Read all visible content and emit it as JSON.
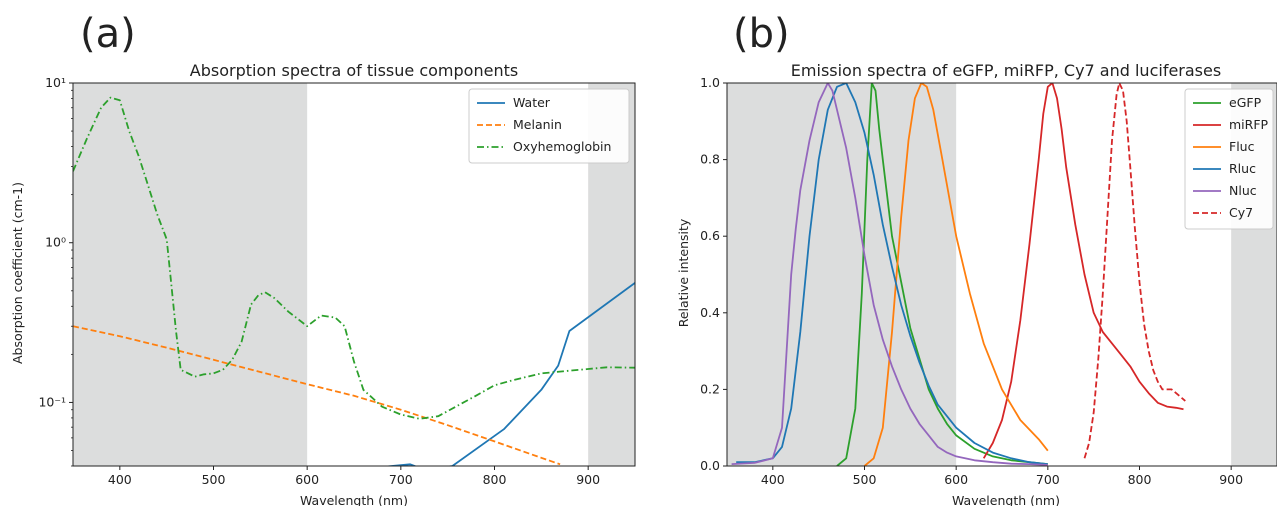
{
  "panels": [
    {
      "panel_label": "(a)",
      "title": "Absorption spectra of tissue components",
      "xlabel": "Wavelength (nm)",
      "ylabel": "Absorption coefficient (cm-1)",
      "xticks": [
        "400",
        "500",
        "600",
        "700",
        "800",
        "900"
      ],
      "yticks": [
        "10⁻¹",
        "10⁰",
        "10¹"
      ],
      "legend": [
        "Water",
        "Melanin",
        "Oxyhemoglobin"
      ]
    },
    {
      "panel_label": "(b)",
      "title": "Emission spectra of eGFP, miRFP, Cy7 and luciferases",
      "xlabel": "Wavelength (nm)",
      "ylabel": "Relative intensity",
      "xticks": [
        "400",
        "500",
        "600",
        "700",
        "800",
        "900"
      ],
      "yticks": [
        "0.0",
        "0.2",
        "0.4",
        "0.6",
        "0.8",
        "1.0"
      ],
      "legend": [
        "eGFP",
        "miRFP",
        "Fluc",
        "Rluc",
        "Nluc",
        "Cy7"
      ]
    }
  ],
  "chart_data": [
    {
      "type": "line",
      "title": "Absorption spectra of tissue components",
      "xlabel": "Wavelength (nm)",
      "ylabel": "Absorption coefficient (cm-1)",
      "xlim": [
        350,
        950
      ],
      "ylim": [
        0.04,
        10
      ],
      "yscale": "log",
      "grid": false,
      "legend_position": "top-right",
      "shaded_x_ranges": [
        [
          350,
          600
        ],
        [
          900,
          950
        ]
      ],
      "shade_color": "#dcdddd",
      "series": [
        {
          "name": "Water",
          "color": "#1f77b4",
          "dash": "solid",
          "x": [
            650,
            710,
            725,
            755,
            810,
            850,
            868,
            880,
            950
          ],
          "y": [
            0.038,
            0.041,
            0.038,
            0.04,
            0.068,
            0.12,
            0.17,
            0.28,
            0.56
          ]
        },
        {
          "name": "Melanin",
          "color": "#ff7f0e",
          "dash": "dashed",
          "x": [
            350,
            400,
            450,
            500,
            550,
            600,
            650,
            700,
            750,
            800,
            850,
            870
          ],
          "y": [
            0.3,
            0.26,
            0.22,
            0.185,
            0.155,
            0.13,
            0.11,
            0.09,
            0.072,
            0.057,
            0.045,
            0.041
          ]
        },
        {
          "name": "Oxyhemoglobin",
          "color": "#2ca02c",
          "dash": "dashdot",
          "x": [
            350,
            365,
            380,
            390,
            400,
            410,
            420,
            430,
            440,
            450,
            455,
            460,
            465,
            470,
            480,
            490,
            500,
            510,
            520,
            530,
            540,
            548,
            555,
            565,
            580,
            600,
            615,
            630,
            640,
            650,
            660,
            680,
            700,
            720,
            740,
            760,
            780,
            800,
            820,
            850,
            880,
            900,
            920,
            950
          ],
          "y": [
            2.8,
            4.5,
            7.0,
            8.1,
            7.8,
            5.0,
            3.5,
            2.3,
            1.5,
            1.05,
            0.55,
            0.28,
            0.16,
            0.155,
            0.145,
            0.15,
            0.152,
            0.16,
            0.185,
            0.24,
            0.41,
            0.47,
            0.49,
            0.45,
            0.37,
            0.3,
            0.35,
            0.34,
            0.3,
            0.18,
            0.12,
            0.094,
            0.084,
            0.079,
            0.082,
            0.095,
            0.11,
            0.128,
            0.138,
            0.152,
            0.158,
            0.162,
            0.166,
            0.165
          ]
        }
      ]
    },
    {
      "type": "line",
      "title": "Emission spectra of eGFP, miRFP, Cy7 and luciferases",
      "xlabel": "Wavelength (nm)",
      "ylabel": "Relative intensity",
      "xlim": [
        350,
        950
      ],
      "ylim": [
        0,
        1
      ],
      "grid": false,
      "legend_position": "top-right",
      "shaded_x_ranges": [
        [
          350,
          600
        ],
        [
          900,
          950
        ]
      ],
      "shade_color": "#dcdddd",
      "series": [
        {
          "name": "eGFP",
          "color": "#2ca02c",
          "dash": "solid",
          "x": [
            470,
            480,
            490,
            497,
            503,
            508,
            512,
            516,
            520,
            525,
            530,
            540,
            550,
            560,
            570,
            580,
            590,
            600,
            620,
            640,
            660,
            680,
            700
          ],
          "y": [
            0.0,
            0.02,
            0.15,
            0.45,
            0.8,
            1.0,
            0.98,
            0.88,
            0.8,
            0.7,
            0.6,
            0.48,
            0.36,
            0.28,
            0.2,
            0.15,
            0.11,
            0.08,
            0.045,
            0.025,
            0.015,
            0.01,
            0.005
          ]
        },
        {
          "name": "miRFP",
          "color": "#d62728",
          "dash": "solid",
          "x": [
            630,
            640,
            650,
            660,
            670,
            680,
            690,
            695,
            700,
            705,
            710,
            715,
            720,
            730,
            740,
            750,
            760,
            770,
            780,
            790,
            800,
            810,
            820,
            830,
            840,
            848
          ],
          "y": [
            0.02,
            0.06,
            0.12,
            0.22,
            0.38,
            0.58,
            0.8,
            0.92,
            0.99,
            1.0,
            0.96,
            0.88,
            0.78,
            0.63,
            0.5,
            0.4,
            0.35,
            0.32,
            0.29,
            0.26,
            0.22,
            0.19,
            0.165,
            0.155,
            0.152,
            0.148
          ]
        },
        {
          "name": "Fluc",
          "color": "#ff7f0e",
          "dash": "solid",
          "x": [
            500,
            510,
            520,
            530,
            540,
            548,
            555,
            562,
            568,
            575,
            585,
            600,
            615,
            630,
            650,
            670,
            690,
            700
          ],
          "y": [
            0.0,
            0.02,
            0.1,
            0.35,
            0.65,
            0.85,
            0.96,
            1.0,
            0.99,
            0.93,
            0.8,
            0.6,
            0.45,
            0.32,
            0.2,
            0.12,
            0.07,
            0.04
          ]
        },
        {
          "name": "Rluc",
          "color": "#1f77b4",
          "dash": "solid",
          "x": [
            360,
            380,
            400,
            410,
            420,
            430,
            440,
            450,
            460,
            470,
            480,
            490,
            500,
            510,
            520,
            530,
            540,
            550,
            560,
            570,
            580,
            590,
            600,
            620,
            640,
            660,
            680,
            700
          ],
          "y": [
            0.01,
            0.01,
            0.02,
            0.05,
            0.15,
            0.35,
            0.6,
            0.8,
            0.93,
            0.99,
            1.0,
            0.95,
            0.87,
            0.76,
            0.63,
            0.52,
            0.42,
            0.34,
            0.27,
            0.21,
            0.16,
            0.13,
            0.1,
            0.06,
            0.035,
            0.02,
            0.01,
            0.005
          ]
        },
        {
          "name": "Nluc",
          "color": "#9467bd",
          "dash": "solid",
          "x": [
            355,
            380,
            400,
            410,
            415,
            420,
            425,
            430,
            440,
            450,
            460,
            465,
            470,
            480,
            490,
            500,
            510,
            520,
            530,
            540,
            550,
            560,
            570,
            580,
            590,
            600,
            620,
            640,
            660,
            680,
            700
          ],
          "y": [
            0.005,
            0.008,
            0.02,
            0.1,
            0.3,
            0.5,
            0.62,
            0.72,
            0.85,
            0.95,
            1.0,
            0.98,
            0.93,
            0.83,
            0.7,
            0.55,
            0.42,
            0.33,
            0.26,
            0.2,
            0.15,
            0.11,
            0.08,
            0.05,
            0.035,
            0.025,
            0.015,
            0.01,
            0.006,
            0.005,
            0.003
          ]
        },
        {
          "name": "Cy7",
          "color": "#d62728",
          "dash": "dashed",
          "x": [
            740,
            745,
            750,
            755,
            760,
            765,
            770,
            775,
            778,
            782,
            786,
            790,
            795,
            800,
            805,
            810,
            815,
            820,
            825,
            830,
            835,
            840,
            845,
            850
          ],
          "y": [
            0.02,
            0.06,
            0.14,
            0.28,
            0.45,
            0.65,
            0.85,
            0.97,
            1.0,
            0.98,
            0.9,
            0.78,
            0.62,
            0.48,
            0.37,
            0.3,
            0.25,
            0.22,
            0.2,
            0.2,
            0.2,
            0.19,
            0.18,
            0.17
          ]
        }
      ]
    }
  ]
}
